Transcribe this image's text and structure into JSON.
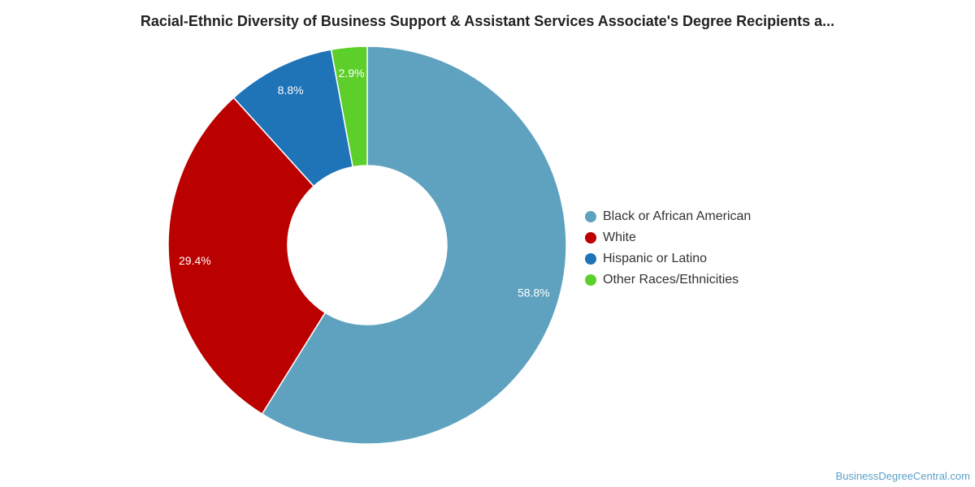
{
  "title": "Racial-Ethnic Diversity of Business Support & Assistant Services Associate's Degree Recipients a...",
  "credit": "BusinessDegreeCentral.com",
  "chart_data": {
    "type": "pie",
    "variant": "donut",
    "title": "Racial-Ethnic Diversity of Business Support & Assistant Services Associate's Degree Recipients a...",
    "legend_position": "right",
    "slices": [
      {
        "name": "Black or African American",
        "value": 58.8,
        "label": "58.8%",
        "color": "#5ea2c0"
      },
      {
        "name": "White",
        "value": 29.4,
        "label": "29.4%",
        "color": "#bb0000"
      },
      {
        "name": "Hispanic or Latino",
        "value": 8.8,
        "label": "8.8%",
        "color": "#1f73b7"
      },
      {
        "name": "Other Races/Ethnicities",
        "value": 2.9,
        "label": "2.9%",
        "color": "#5ccf2a"
      }
    ]
  }
}
